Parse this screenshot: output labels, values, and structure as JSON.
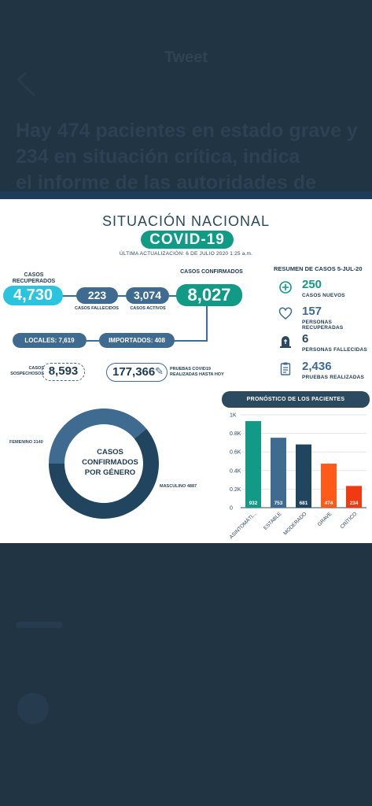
{
  "tweet": {
    "header": "Tweet",
    "text_line1": "Hay 474 pacientes en estado grave y",
    "text_line2": "234 en situación crítica, indica",
    "text_line3": "el informe de las autoridades de salud."
  },
  "infographic": {
    "title": "SITUACIÓN NACIONAL",
    "badge": "COVID-19",
    "updated": "ÚLTIMA ACTUALIZACIÓN: 6 DE JULIO 2020 1:25 a.m.",
    "recuperados": {
      "label": "CASOS RECUPERADOS",
      "value": "4,730"
    },
    "fallecidos": {
      "label": "CASOS FALLECIDOS",
      "value": "223"
    },
    "activos": {
      "label": "CASOS ACTIVOS",
      "value": "3,074"
    },
    "confirmados": {
      "label": "CASOS CONFIRMADOS",
      "value": "8,027"
    },
    "locales": "LOCALES: 7,619",
    "importados": "IMPORTADOS: 408",
    "sospechosos": {
      "label": "CASOS SOSPECHOSOS",
      "value": "8,593"
    },
    "pruebas": {
      "label": "PRUEBAS COVID19 REALIZADAS HASTA HOY",
      "value": "177,366"
    },
    "resumen": {
      "title": "RESUMEN DE CASOS 5-JUL-20",
      "items": [
        {
          "icon": "plus-circle-icon",
          "value": "250",
          "label": "CASOS NUEVOS"
        },
        {
          "icon": "heart-icon",
          "value": "157",
          "label": "PERSONAS RECUPERADAS"
        },
        {
          "icon": "tombstone-icon",
          "value": "6",
          "label": "PERSONAS FALLECIDAS"
        },
        {
          "icon": "clipboard-icon",
          "value": "2,436",
          "label": "PRUEBAS REALIZADAS"
        }
      ]
    },
    "genero": {
      "center_line1": "CASOS",
      "center_line2": "CONFIRMADOS",
      "center_line3": "POR GÉNERO",
      "femenino_label": "FEMENINO 3140",
      "masculino_label": "MASCULINO 4887"
    },
    "pronostico_title": "PRONÓSTICO DE LOS PACIENTES"
  },
  "colors": {
    "teal": "#119a86",
    "cyan": "#2ac4de",
    "steel": "#3f6b91",
    "navy": "#2c4a5f",
    "orange": "#ff5a1a",
    "red": "#f03a12"
  },
  "chart_data": [
    {
      "type": "pie",
      "title": "CASOS CONFIRMADOS POR GÉNERO",
      "categories": [
        "FEMENINO",
        "MASCULINO"
      ],
      "values": [
        3140,
        4887
      ],
      "colors": [
        "#3f6b91",
        "#21455f"
      ]
    },
    {
      "type": "bar",
      "title": "PRONÓSTICO DE LOS PACIENTES",
      "categories": [
        "ASINTOMÁTI...",
        "ESTABLE",
        "MODERADO",
        "GRAVE",
        "CRÍTICO"
      ],
      "values": [
        932,
        753,
        681,
        474,
        234
      ],
      "colors": [
        "#119a86",
        "#3f6b91",
        "#21455f",
        "#ff5a1a",
        "#f03a12"
      ],
      "yticks": [
        "0",
        "0.2K",
        "0.4K",
        "0.6K",
        "0.8K",
        "1K"
      ],
      "ylim": [
        0,
        1000
      ],
      "grid": true
    }
  ]
}
